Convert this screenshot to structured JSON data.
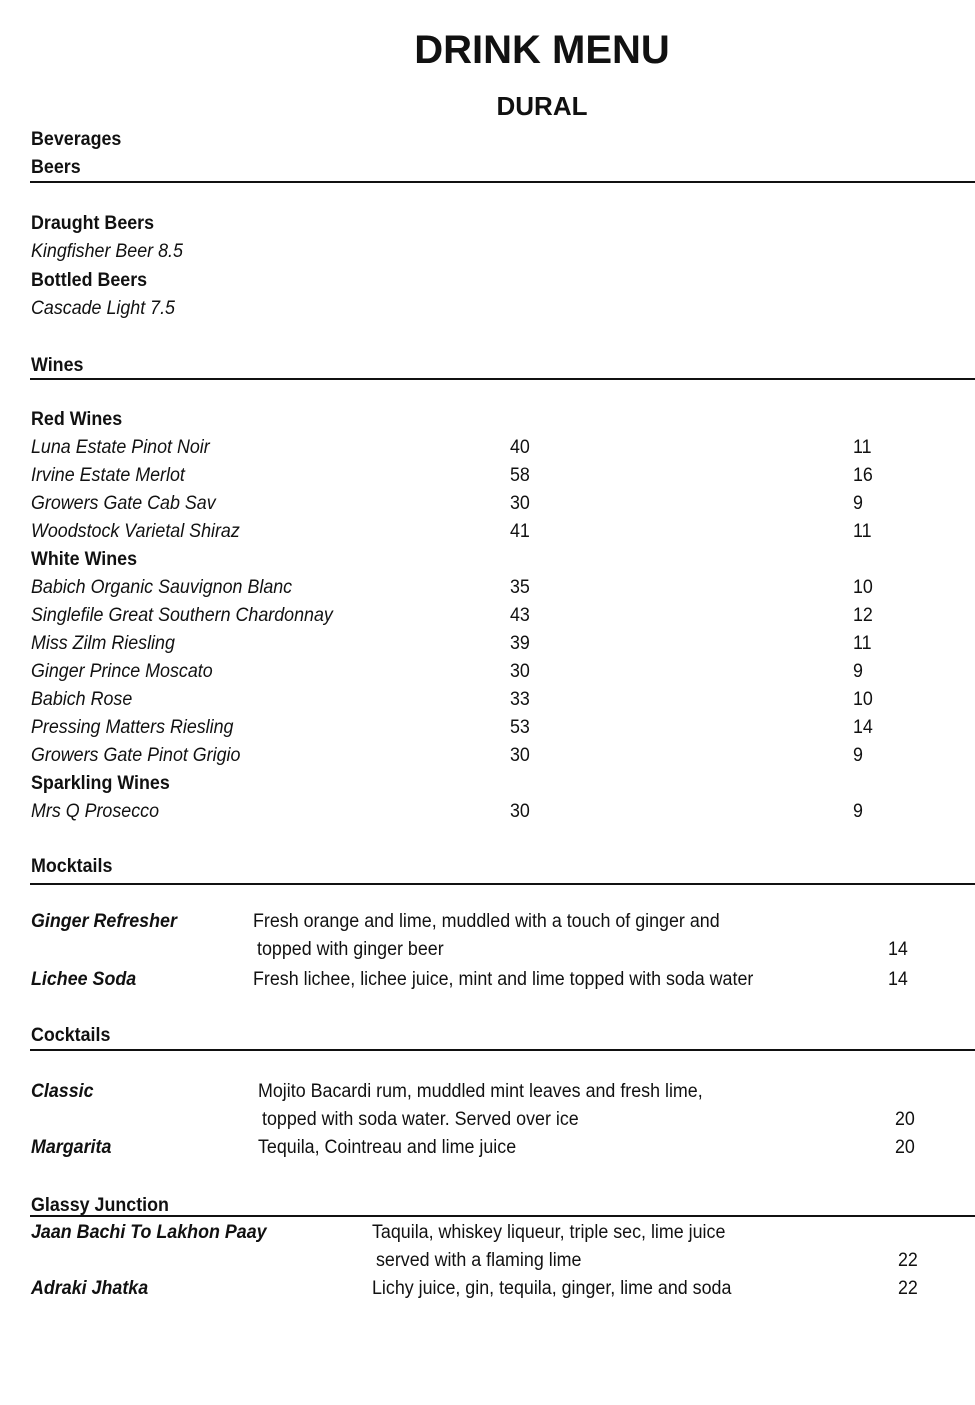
{
  "title": "DRINK MENU",
  "subtitle": "DURAL",
  "beverages_label": "Beverages",
  "beers": {
    "heading": "Beers",
    "groups": [
      {
        "name": "Draught Beers",
        "items": [
          "Kingfisher Beer 8.5"
        ]
      },
      {
        "name": "Bottled Beers",
        "items": [
          "Cascade Light 7.5"
        ]
      }
    ]
  },
  "wines": {
    "heading": "Wines",
    "groups": [
      {
        "name": "Red Wines",
        "items": [
          {
            "name": "Luna Estate Pinot Noir",
            "bottle": "40",
            "glass": "11"
          },
          {
            "name": "Irvine Estate Merlot",
            "bottle": "58",
            "glass": "16"
          },
          {
            "name": "Growers Gate Cab Sav",
            "bottle": "30",
            "glass": "9"
          },
          {
            "name": "Woodstock Varietal Shiraz",
            "bottle": "41",
            "glass": "11"
          }
        ]
      },
      {
        "name": "White Wines",
        "items": [
          {
            "name": "Babich Organic Sauvignon Blanc",
            "bottle": "35",
            "glass": "10"
          },
          {
            "name": "Singlefile Great Southern Chardonnay",
            "bottle": "43",
            "glass": "12"
          },
          {
            "name": "Miss Zilm Riesling",
            "bottle": "39",
            "glass": "11"
          },
          {
            "name": "Ginger Prince Moscato",
            "bottle": "30",
            "glass": "9"
          },
          {
            "name": "Babich Rose",
            "bottle": "33",
            "glass": "10"
          },
          {
            "name": "Pressing Matters Riesling",
            "bottle": "53",
            "glass": "14"
          },
          {
            "name": "Growers Gate Pinot Grigio",
            "bottle": "30",
            "glass": "9"
          }
        ]
      },
      {
        "name": "Sparkling Wines",
        "items": [
          {
            "name": "Mrs Q Prosecco",
            "bottle": "30",
            "glass": "9"
          }
        ]
      }
    ]
  },
  "mocktails": {
    "heading": "Mocktails",
    "items": [
      {
        "name": "Ginger Refresher",
        "desc": [
          "Fresh orange and lime, muddled with a touch of ginger and",
          "topped with ginger beer"
        ],
        "price": "14"
      },
      {
        "name": "Lichee Soda",
        "desc": [
          "Fresh lichee, lichee juice, mint and lime topped with soda water"
        ],
        "price": "14"
      }
    ]
  },
  "cocktails": {
    "heading": "Cocktails",
    "items": [
      {
        "name": "Classic",
        "desc": [
          "Mojito Bacardi rum, muddled mint leaves and fresh lime,",
          "topped with soda water. Served over ice"
        ],
        "price": "20"
      },
      {
        "name": "Margarita",
        "desc": [
          "Tequila, Cointreau and lime juice"
        ],
        "price": "20"
      }
    ]
  },
  "glassy_junction": {
    "heading": "Glassy Junction",
    "items": [
      {
        "name": "Jaan Bachi To Lakhon Paay",
        "desc": [
          "Taquila, whiskey liqueur, triple sec, lime juice",
          "served with a flaming lime"
        ],
        "price": "22"
      },
      {
        "name": "Adraki Jhatka",
        "desc": [
          "Lichy juice, gin, tequila, ginger, lime and soda"
        ],
        "price": "22"
      }
    ]
  }
}
